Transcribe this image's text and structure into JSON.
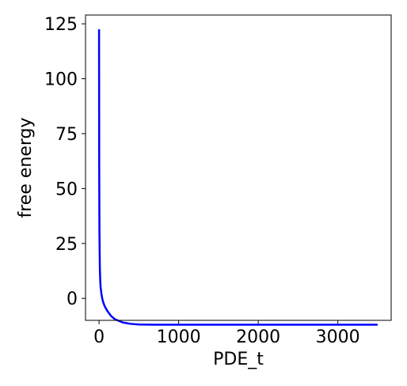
{
  "chart_data": {
    "type": "line",
    "title": "",
    "xlabel": "PDE_t",
    "ylabel": "free energy",
    "xlim": [
      -170,
      3670
    ],
    "ylim": [
      -10,
      129
    ],
    "x_ticks": [
      0,
      1000,
      2000,
      3000
    ],
    "x_tick_labels": [
      "0",
      "1000",
      "2000",
      "3000"
    ],
    "y_ticks": [
      0,
      25,
      50,
      75,
      100,
      125
    ],
    "y_tick_labels": [
      "0",
      "25",
      "50",
      "75",
      "100",
      "125"
    ],
    "grid": false,
    "legend": "none",
    "series": [
      {
        "color": "#0000ff",
        "x": [
          0,
          2,
          5,
          10,
          15,
          20,
          30,
          40,
          50,
          70,
          100,
          150,
          200,
          300,
          400,
          500,
          700,
          1000,
          1500,
          2000,
          2500,
          3000,
          3500
        ],
        "y": [
          122.5,
          60,
          30,
          14,
          8,
          5,
          2,
          0,
          -1.5,
          -3.5,
          -5.5,
          -8,
          -9.5,
          -11,
          -11.6,
          -11.9,
          -12.0,
          -12.0,
          -12.0,
          -12.0,
          -12.0,
          -12.0,
          -12.0
        ]
      }
    ]
  }
}
